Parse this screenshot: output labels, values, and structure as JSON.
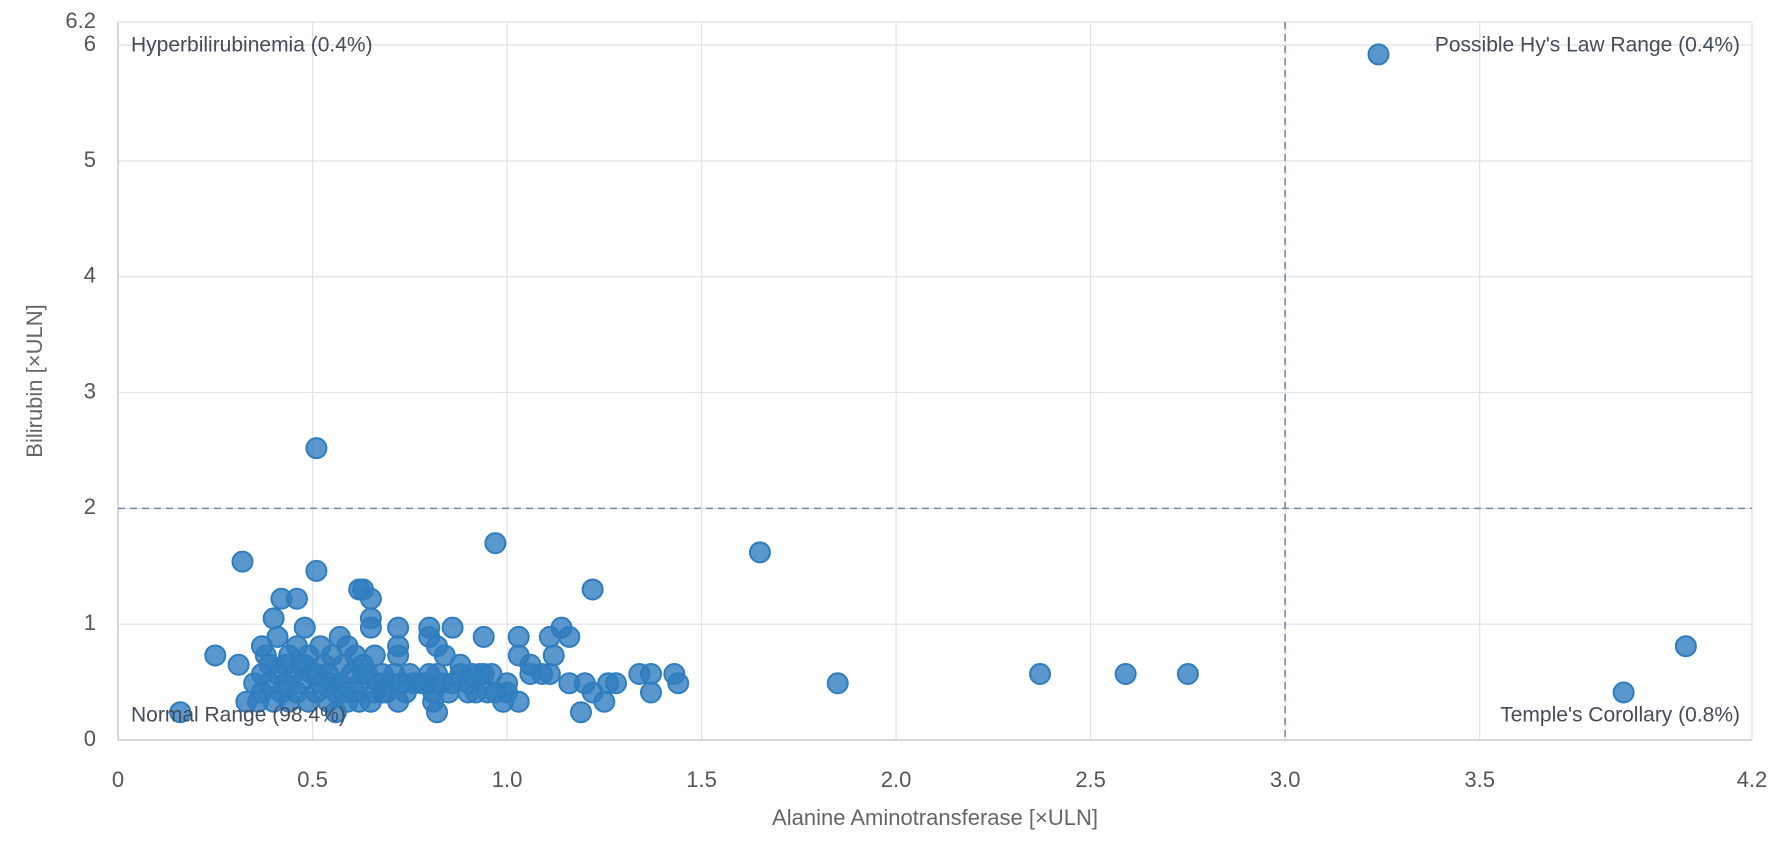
{
  "chart_data": {
    "type": "scatter",
    "x_label": "Alanine Aminotransferase [×ULN]",
    "y_label": "Bilirubin [×ULN]",
    "xlim": [
      0,
      4.2
    ],
    "ylim": [
      0,
      6.2
    ],
    "xticks": [
      0,
      0.5,
      {
        "value": 1,
        "label": "1.0"
      },
      1.5,
      {
        "value": 2,
        "label": "2.0"
      },
      2.5,
      {
        "value": 3,
        "label": "3.0"
      },
      3.5,
      4.2
    ],
    "yticks": [
      0,
      1,
      2,
      3,
      4,
      5,
      6,
      6.2
    ],
    "grid": true,
    "x_threshold": 3,
    "y_threshold": 2,
    "color": "#2f7dbf",
    "annotations": [
      {
        "text": "Hyperbilirubinemia (0.4%)",
        "corner": "top-left"
      },
      {
        "text": "Possible Hy's Law Range (0.4%)",
        "corner": "top-right"
      },
      {
        "text": "Normal Range (98.4%)",
        "corner": "bottom-left"
      },
      {
        "text": "Temple's Corollary (0.8%)",
        "corner": "bottom-right"
      }
    ],
    "x": [
      3.24,
      3.87,
      4.03,
      0.51,
      0.97,
      1.65,
      0.32,
      0.51,
      0.62,
      0.63,
      1.22,
      0.42,
      0.46,
      0.65,
      0.4,
      0.65,
      0.48,
      0.65,
      0.72,
      0.8,
      0.86,
      1.14,
      0.16,
      0.25,
      0.31,
      1.85,
      2.37,
      2.59,
      2.75,
      1.34,
      1.37,
      1.37,
      1.43,
      1.44,
      1.19,
      1.2,
      1.22,
      1.25,
      1.26,
      1.28,
      1.16,
      1.11,
      1.12,
      1.11,
      1.16,
      1.06,
      1.06,
      1.09,
      1.03,
      1.03,
      1.03,
      1.0,
      0.99,
      0.94,
      0.94,
      0.96,
      0.95,
      0.92,
      0.9,
      0.91,
      0.88,
      0.84,
      0.82,
      0.8,
      0.82,
      0.85,
      0.82,
      0.81,
      0.79,
      0.33,
      0.35,
      0.36,
      0.37,
      0.37,
      0.37,
      0.38,
      0.39,
      0.39,
      0.4,
      0.41,
      0.41,
      0.42,
      0.43,
      0.43,
      0.44,
      0.45,
      0.46,
      0.46,
      0.47,
      0.48,
      0.49,
      0.49,
      0.5,
      0.51,
      0.52,
      0.52,
      0.53,
      0.54,
      0.54,
      0.55,
      0.56,
      0.56,
      0.57,
      0.57,
      0.58,
      0.59,
      0.59,
      0.6,
      0.61,
      0.61,
      0.62,
      0.63,
      0.64,
      0.65,
      0.66,
      0.66,
      0.67,
      0.68,
      0.69,
      0.7,
      0.71,
      0.72,
      0.72,
      0.72,
      0.73,
      0.74,
      0.75,
      0.76,
      0.78,
      0.8,
      0.81,
      0.83,
      0.86,
      0.88,
      0.9,
      0.93,
      0.97,
      1.0,
      0.51,
      0.47,
      0.44,
      0.55,
      0.58,
      0.62,
      0.68,
      0.63
    ],
    "y": [
      5.92,
      0.41,
      0.81,
      2.52,
      1.7,
      1.62,
      1.54,
      1.46,
      1.3,
      1.3,
      1.3,
      1.22,
      1.22,
      1.22,
      1.05,
      1.05,
      0.97,
      0.97,
      0.97,
      0.97,
      0.97,
      0.97,
      0.24,
      0.73,
      0.65,
      0.49,
      0.57,
      0.57,
      0.57,
      0.57,
      0.57,
      0.41,
      0.57,
      0.49,
      0.24,
      0.49,
      0.41,
      0.33,
      0.49,
      0.49,
      0.49,
      0.57,
      0.73,
      0.89,
      0.89,
      0.65,
      0.57,
      0.57,
      0.89,
      0.73,
      0.33,
      0.49,
      0.33,
      0.89,
      0.57,
      0.57,
      0.41,
      0.41,
      0.41,
      0.57,
      0.65,
      0.73,
      0.81,
      0.89,
      0.57,
      0.41,
      0.24,
      0.33,
      0.49,
      0.33,
      0.49,
      0.33,
      0.41,
      0.57,
      0.81,
      0.73,
      0.49,
      0.65,
      0.33,
      0.89,
      0.57,
      0.41,
      0.49,
      0.65,
      0.33,
      0.57,
      0.81,
      0.41,
      0.49,
      0.65,
      0.73,
      0.33,
      0.57,
      0.41,
      0.49,
      0.81,
      0.65,
      0.33,
      0.57,
      0.73,
      0.41,
      0.24,
      0.89,
      0.49,
      0.65,
      0.81,
      0.33,
      0.57,
      0.41,
      0.73,
      0.49,
      0.65,
      0.57,
      0.33,
      0.41,
      0.73,
      0.49,
      0.57,
      0.41,
      0.49,
      0.57,
      0.33,
      0.73,
      0.81,
      0.49,
      0.41,
      0.57,
      0.49,
      0.49,
      0.57,
      0.41,
      0.49,
      0.49,
      0.57,
      0.49,
      0.57,
      0.41,
      0.41,
      0.57,
      0.65,
      0.73,
      0.49,
      0.41,
      0.33,
      0.41,
      0.57
    ]
  }
}
